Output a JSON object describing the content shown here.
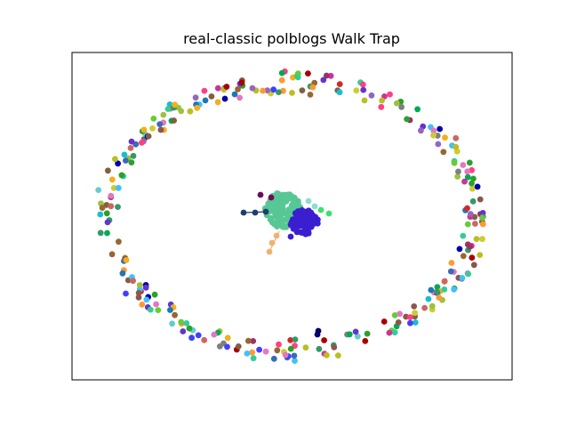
{
  "figure": {
    "title": "real-classic polblogs Walk Trap"
  },
  "graph": {
    "layout": "spring",
    "axes_visible": false,
    "ring_palette": [
      "#1f77b4",
      "#2ca02c",
      "#d62728",
      "#9467bd",
      "#8c564b",
      "#e377c2",
      "#bcbd22",
      "#17becf",
      "#3b6ab8",
      "#66cc33",
      "#cc3399",
      "#33cc99",
      "#996633",
      "#6633cc",
      "#ff9933",
      "#339966",
      "#cc6666",
      "#66cccc",
      "#cccc33",
      "#993366",
      "#0000aa",
      "#aa0000",
      "#00aa55",
      "#f2b01e",
      "#7f7f7f",
      "#a0c040",
      "#4040ff",
      "#ff4080",
      "#40c0ff",
      "#806040"
    ],
    "core_clusters": [
      {
        "color": "#57c795",
        "nodes": 140
      },
      {
        "color": "#3a1fd0",
        "nodes": 95
      }
    ],
    "tails": [
      {
        "color": "#1f3f6b"
      },
      {
        "color": "#f0b070"
      },
      {
        "color": "#6e0b5a"
      },
      {
        "color": "#3de070"
      },
      {
        "color": "#8fdada"
      }
    ],
    "ring_nodes": 300
  }
}
